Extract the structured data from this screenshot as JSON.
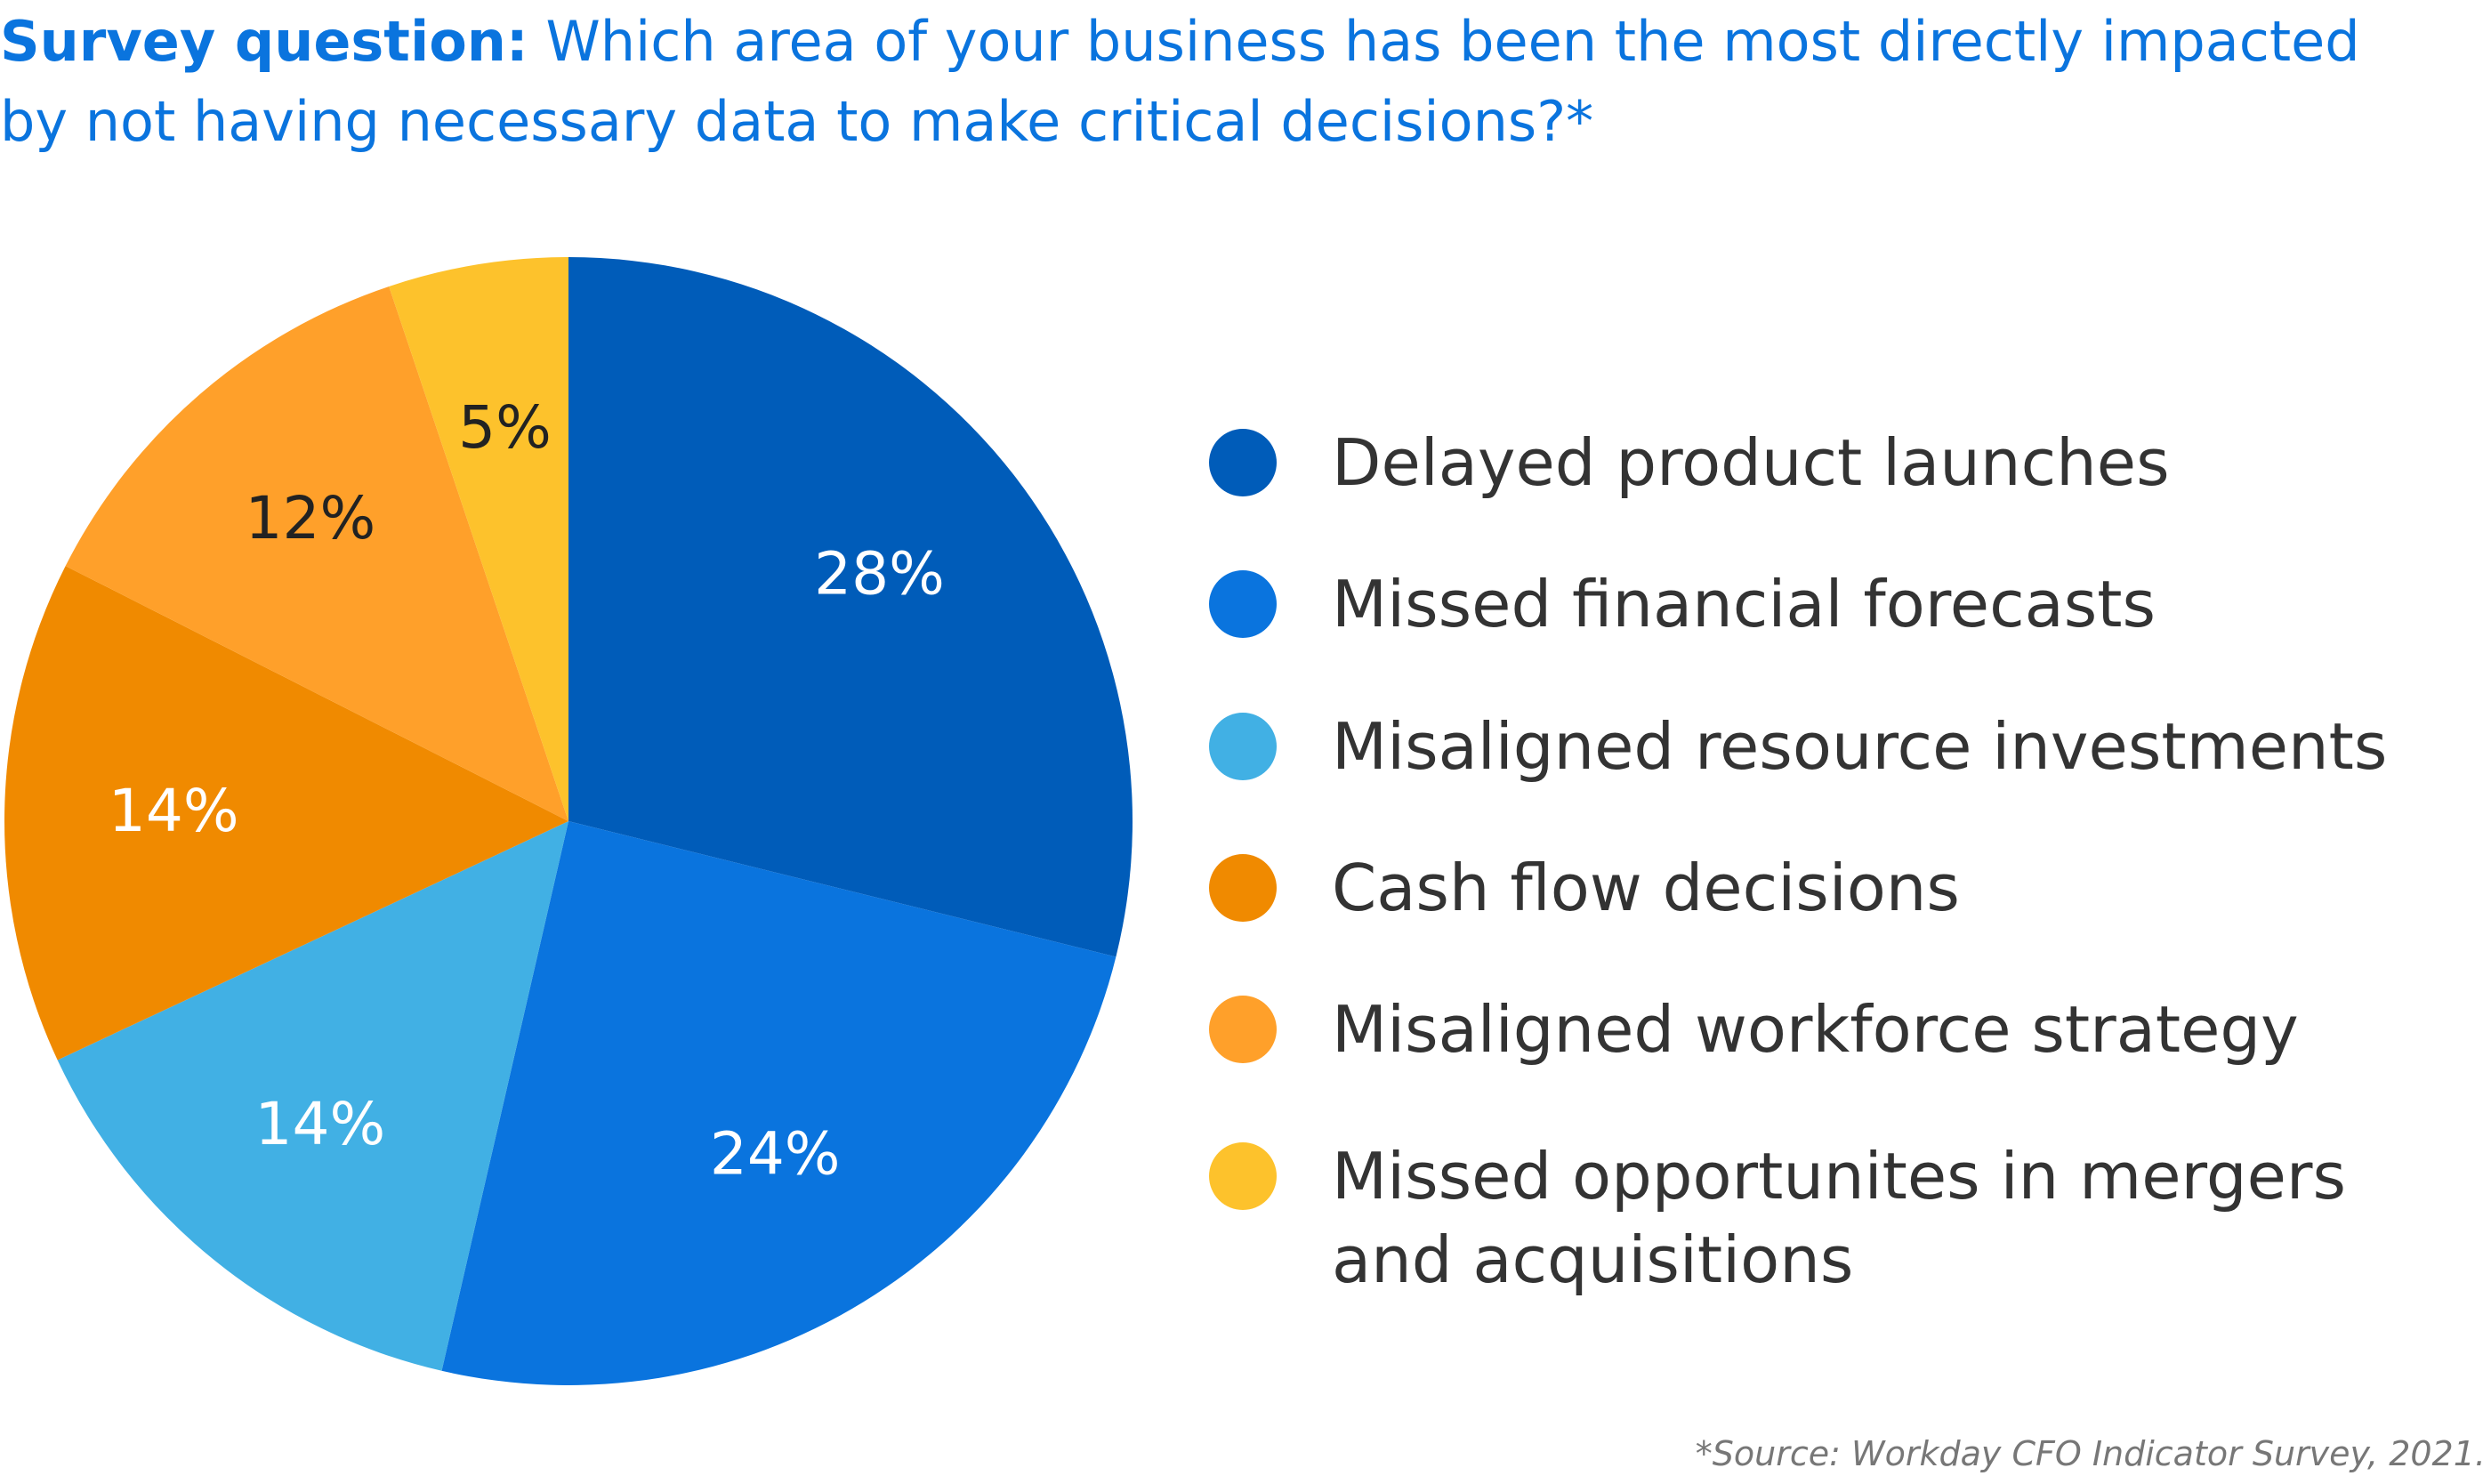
{
  "chart_data": {
    "type": "pie",
    "title_label": "Survey question:",
    "title": "Which area of your business has been the most directly impacted by not having necessary data to make critical decisions?*",
    "categories": [
      "Delayed product launches",
      "Missed financial forecasts",
      "Misaligned resource investments",
      "Cash flow decisions",
      "Misaligned workforce strategy",
      "Missed opportunites in mergers and acquisitions"
    ],
    "values": [
      28,
      24,
      14,
      14,
      12,
      5
    ],
    "value_labels": [
      "28%",
      "24%",
      "14%",
      "14%",
      "12%",
      "5%"
    ],
    "colors": [
      "#005cb9",
      "#0a74de",
      "#41b0e4",
      "#f08a00",
      "#ffa02a",
      "#fdc22c"
    ],
    "legend": "right",
    "source": "*Source: Workday CFO Indicator Survey, 2021."
  }
}
